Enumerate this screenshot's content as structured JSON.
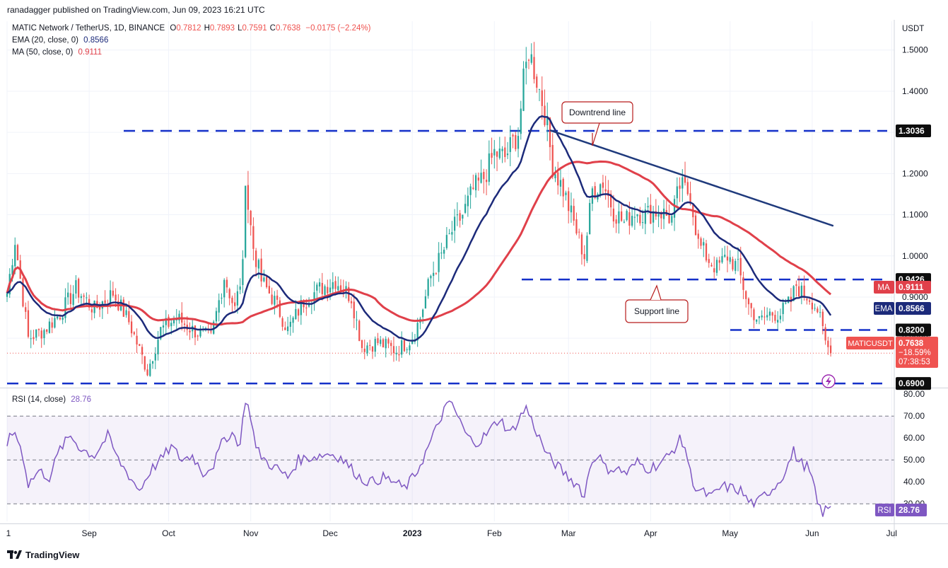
{
  "header": {
    "publisher": "ranadagger published on TradingView.com, Jun 09, 2023 16:21 UTC"
  },
  "legend": {
    "symbol": "MATIC Network / TetherUS, 1D, BINANCE",
    "ohlc": [
      {
        "k": "O",
        "v": "0.7812"
      },
      {
        "k": "H",
        "v": "0.7893"
      },
      {
        "k": "L",
        "v": "0.7591"
      },
      {
        "k": "C",
        "v": "0.7638"
      }
    ],
    "change": "−0.0175 (−2.24%)",
    "ema_label": "EMA (20, close, 0)",
    "ema_value": "0.8566",
    "ma_label": "MA (50, close, 0)",
    "ma_value": "0.9111",
    "rsi_label": "RSI (14, close)",
    "rsi_value": "28.76"
  },
  "colors": {
    "up": "#26a69a",
    "down": "#ef5350",
    "ema": "#1c2a7a",
    "ma": "#e0404a",
    "level": "#1531c9",
    "rsi": "#7e57c2",
    "annotation": "#b71c1c"
  },
  "badges": {
    "price_currency": "USDT",
    "level_1": "1.3036",
    "level_2": "0.9426",
    "level_3": "0.8200",
    "level_4": "0.6900",
    "ma_tag": "MA",
    "ma_val": "0.9111",
    "ema_tag": "EMA",
    "ema_val": "0.8566",
    "sym_tag": "MATICUSDT",
    "sym_val": "0.7638",
    "sym_change": "−18.59%",
    "sym_timer": "07:38:53",
    "rsi_tag": "RSI",
    "rsi_val": "28.76"
  },
  "annotations": {
    "downtrend": "Downtrend line",
    "support": "Support line"
  },
  "footer": {
    "brand": "TradingView"
  },
  "chart_data": {
    "type": "candlestick",
    "symbol": "MATICUSDT",
    "timeframe": "1D",
    "price_axis": {
      "ticks": [
        "1.5000",
        "1.4000",
        "1.3000",
        "1.2000",
        "1.1000",
        "1.0000",
        "0.9000",
        "0.8000"
      ],
      "tick_values": [
        1.5,
        1.4,
        1.3,
        1.2,
        1.1,
        1.0,
        0.9,
        0.8
      ],
      "range": [
        0.68,
        1.57
      ]
    },
    "rsi_axis": {
      "ticks": [
        "80.00",
        "70.00",
        "60.00",
        "50.00",
        "40.00",
        "30.00"
      ],
      "tick_values": [
        80,
        70,
        60,
        50,
        40,
        30
      ],
      "band": [
        30,
        70
      ],
      "range": [
        22,
        82
      ]
    },
    "time_axis": [
      {
        "label": "1",
        "day": 0
      },
      {
        "label": "Sep",
        "day": 31
      },
      {
        "label": "Oct",
        "day": 61
      },
      {
        "label": "Nov",
        "day": 92
      },
      {
        "label": "Dec",
        "day": 122
      },
      {
        "label": "2023",
        "day": 153
      },
      {
        "label": "Feb",
        "day": 184
      },
      {
        "label": "Mar",
        "day": 212
      },
      {
        "label": "Apr",
        "day": 243
      },
      {
        "label": "May",
        "day": 273
      },
      {
        "label": "Jun",
        "day": 304
      },
      {
        "label": "Jul",
        "day": 334
      }
    ],
    "levels": [
      1.3036,
      0.9426,
      0.82,
      0.69
    ],
    "trendline": {
      "from": {
        "day": 205,
        "price": 1.305
      },
      "to": {
        "day": 312,
        "price": 1.073
      }
    },
    "support_line_price": 0.9426,
    "close_anchors": [
      [
        0,
        0.91
      ],
      [
        3,
        1.04
      ],
      [
        8,
        0.8
      ],
      [
        14,
        0.82
      ],
      [
        20,
        0.86
      ],
      [
        26,
        0.92
      ],
      [
        33,
        0.87
      ],
      [
        40,
        0.91
      ],
      [
        46,
        0.84
      ],
      [
        53,
        0.72
      ],
      [
        58,
        0.82
      ],
      [
        64,
        0.85
      ],
      [
        70,
        0.82
      ],
      [
        77,
        0.8
      ],
      [
        82,
        0.95
      ],
      [
        86,
        0.87
      ],
      [
        89,
        0.97
      ],
      [
        90,
        1.2
      ],
      [
        91,
        1.12
      ],
      [
        93,
        1.02
      ],
      [
        96,
        0.94
      ],
      [
        101,
        0.89
      ],
      [
        106,
        0.82
      ],
      [
        112,
        0.89
      ],
      [
        118,
        0.92
      ],
      [
        124,
        0.94
      ],
      [
        130,
        0.9
      ],
      [
        134,
        0.78
      ],
      [
        140,
        0.79
      ],
      [
        147,
        0.77
      ],
      [
        153,
        0.8
      ],
      [
        156,
        0.85
      ],
      [
        160,
        0.95
      ],
      [
        164,
        1.0
      ],
      [
        168,
        1.06
      ],
      [
        172,
        1.1
      ],
      [
        176,
        1.16
      ],
      [
        180,
        1.19
      ],
      [
        184,
        1.25
      ],
      [
        188,
        1.24
      ],
      [
        193,
        1.3
      ],
      [
        195,
        1.42
      ],
      [
        197,
        1.5
      ],
      [
        200,
        1.43
      ],
      [
        203,
        1.35
      ],
      [
        206,
        1.22
      ],
      [
        210,
        1.16
      ],
      [
        214,
        1.08
      ],
      [
        218,
        1.0
      ],
      [
        221,
        1.16
      ],
      [
        225,
        1.18
      ],
      [
        229,
        1.11
      ],
      [
        233,
        1.08
      ],
      [
        237,
        1.11
      ],
      [
        241,
        1.1
      ],
      [
        246,
        1.11
      ],
      [
        251,
        1.09
      ],
      [
        254,
        1.17
      ],
      [
        258,
        1.15
      ],
      [
        261,
        1.03
      ],
      [
        265,
        0.99
      ],
      [
        268,
        0.97
      ],
      [
        272,
        1.0
      ],
      [
        276,
        0.97
      ],
      [
        280,
        0.88
      ],
      [
        284,
        0.84
      ],
      [
        288,
        0.86
      ],
      [
        292,
        0.86
      ],
      [
        296,
        0.89
      ],
      [
        298,
        0.93
      ],
      [
        300,
        0.91
      ],
      [
        303,
        0.9
      ],
      [
        306,
        0.87
      ],
      [
        309,
        0.79
      ],
      [
        311,
        0.7638
      ]
    ],
    "rsi_anchors": [
      [
        0,
        58
      ],
      [
        3,
        63
      ],
      [
        6,
        52
      ],
      [
        8,
        39
      ],
      [
        12,
        45
      ],
      [
        16,
        42
      ],
      [
        20,
        55
      ],
      [
        24,
        61
      ],
      [
        28,
        55
      ],
      [
        33,
        52
      ],
      [
        38,
        61
      ],
      [
        42,
        50
      ],
      [
        46,
        43
      ],
      [
        50,
        36
      ],
      [
        54,
        45
      ],
      [
        58,
        50
      ],
      [
        62,
        56
      ],
      [
        66,
        50
      ],
      [
        70,
        52
      ],
      [
        74,
        44
      ],
      [
        78,
        48
      ],
      [
        82,
        60
      ],
      [
        85,
        62
      ],
      [
        88,
        57
      ],
      [
        90,
        78
      ],
      [
        92,
        70
      ],
      [
        94,
        55
      ],
      [
        98,
        49
      ],
      [
        102,
        46
      ],
      [
        106,
        42
      ],
      [
        110,
        50
      ],
      [
        114,
        51
      ],
      [
        118,
        52
      ],
      [
        122,
        53
      ],
      [
        126,
        51
      ],
      [
        130,
        46
      ],
      [
        134,
        41
      ],
      [
        138,
        40
      ],
      [
        142,
        42
      ],
      [
        146,
        40
      ],
      [
        150,
        37
      ],
      [
        154,
        43
      ],
      [
        158,
        53
      ],
      [
        162,
        64
      ],
      [
        165,
        73
      ],
      [
        168,
        76
      ],
      [
        170,
        70
      ],
      [
        174,
        60
      ],
      [
        178,
        58
      ],
      [
        182,
        63
      ],
      [
        186,
        69
      ],
      [
        190,
        62
      ],
      [
        193,
        68
      ],
      [
        196,
        74
      ],
      [
        198,
        68
      ],
      [
        201,
        60
      ],
      [
        204,
        52
      ],
      [
        208,
        47
      ],
      [
        212,
        42
      ],
      [
        216,
        38
      ],
      [
        218,
        33
      ],
      [
        220,
        47
      ],
      [
        223,
        53
      ],
      [
        226,
        46
      ],
      [
        230,
        46
      ],
      [
        234,
        44
      ],
      [
        238,
        49
      ],
      [
        242,
        46
      ],
      [
        246,
        48
      ],
      [
        250,
        52
      ],
      [
        254,
        59
      ],
      [
        256,
        56
      ],
      [
        258,
        44
      ],
      [
        260,
        37
      ],
      [
        263,
        35
      ],
      [
        266,
        33
      ],
      [
        270,
        38
      ],
      [
        274,
        37
      ],
      [
        277,
        36
      ],
      [
        280,
        31
      ],
      [
        283,
        30
      ],
      [
        286,
        34
      ],
      [
        289,
        37
      ],
      [
        292,
        41
      ],
      [
        295,
        48
      ],
      [
        297,
        54
      ],
      [
        299,
        49
      ],
      [
        302,
        47
      ],
      [
        304,
        41
      ],
      [
        306,
        30
      ],
      [
        308,
        26
      ],
      [
        311,
        28.76
      ]
    ],
    "days_total": 335
  }
}
